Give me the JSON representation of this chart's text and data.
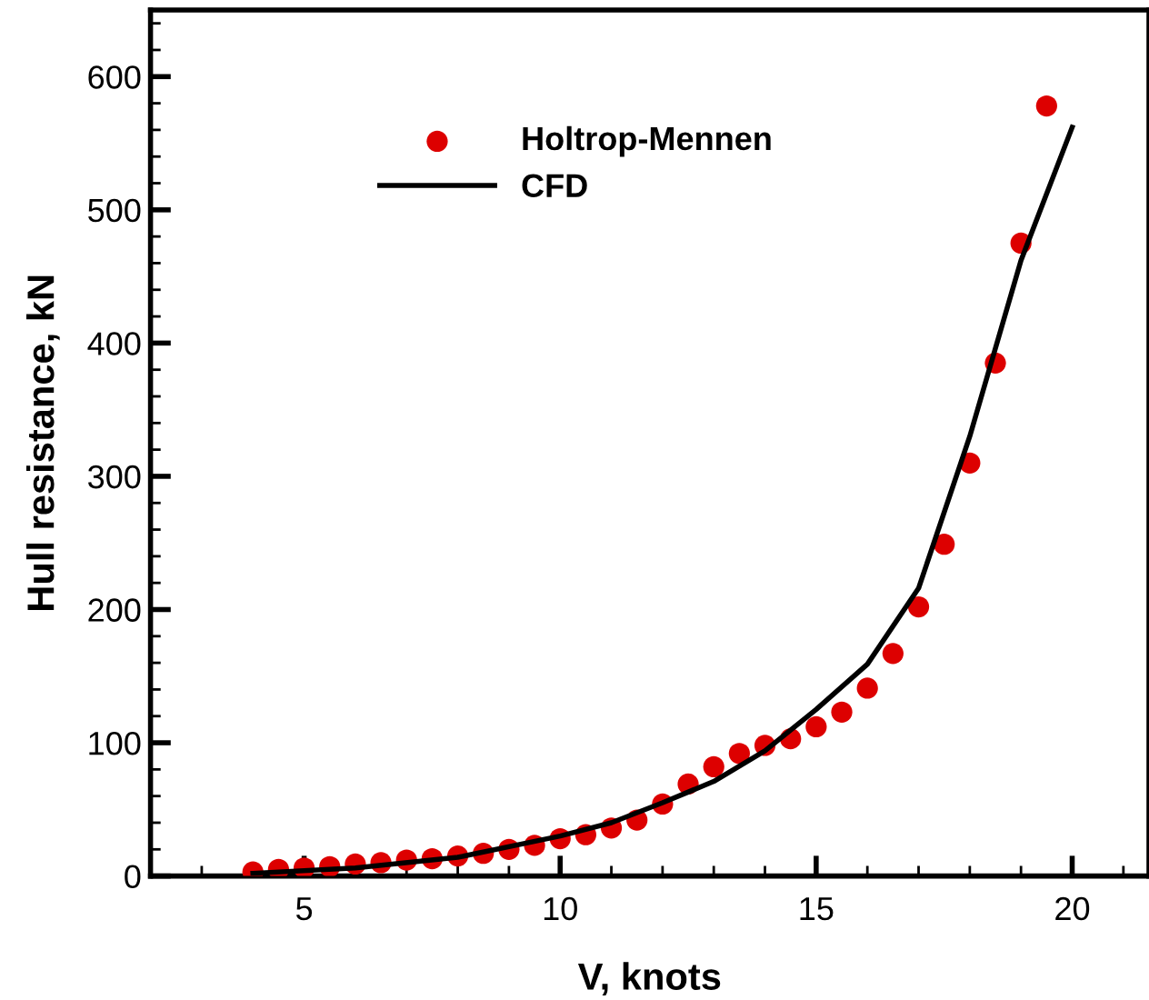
{
  "chart_data": {
    "type": "scatter",
    "xlabel": "V, knots",
    "ylabel": "Hull resistance, kN",
    "xlim": [
      2,
      21.5
    ],
    "ylim": [
      0,
      650
    ],
    "xticks": [
      5,
      10,
      15,
      20
    ],
    "yticks": [
      0,
      100,
      200,
      300,
      400,
      500,
      600
    ],
    "legend": "top left",
    "grid": false,
    "series": [
      {
        "name": "Holtrop-Mennen",
        "marker": "circle",
        "color": "#dd0000",
        "x": [
          4,
          4.5,
          5,
          5.5,
          6,
          6.5,
          7,
          7.5,
          8,
          8.5,
          9,
          9.5,
          10,
          10.5,
          11,
          11.5,
          12,
          12.5,
          13,
          13.5,
          14,
          14.5,
          15,
          15.5,
          16,
          16.5,
          17,
          17.5,
          18,
          18.5,
          19,
          19.5
        ],
        "values": [
          3,
          5,
          6,
          7,
          9,
          10,
          12,
          13,
          15,
          17,
          20,
          23,
          28,
          31,
          36,
          42,
          54,
          69,
          82,
          92,
          98,
          103,
          112,
          123,
          141,
          167,
          202,
          249,
          310,
          385,
          475,
          578
        ]
      },
      {
        "name": "CFD",
        "type": "line",
        "marker": "none",
        "line_style": "solid",
        "color": "#000000",
        "x": [
          4,
          6,
          8,
          10,
          11,
          12,
          13,
          14,
          15,
          16,
          17,
          18,
          19,
          20
        ],
        "values": [
          2,
          6,
          14,
          30,
          40,
          55,
          71,
          94,
          125,
          159,
          216,
          330,
          462,
          562
        ]
      }
    ]
  }
}
